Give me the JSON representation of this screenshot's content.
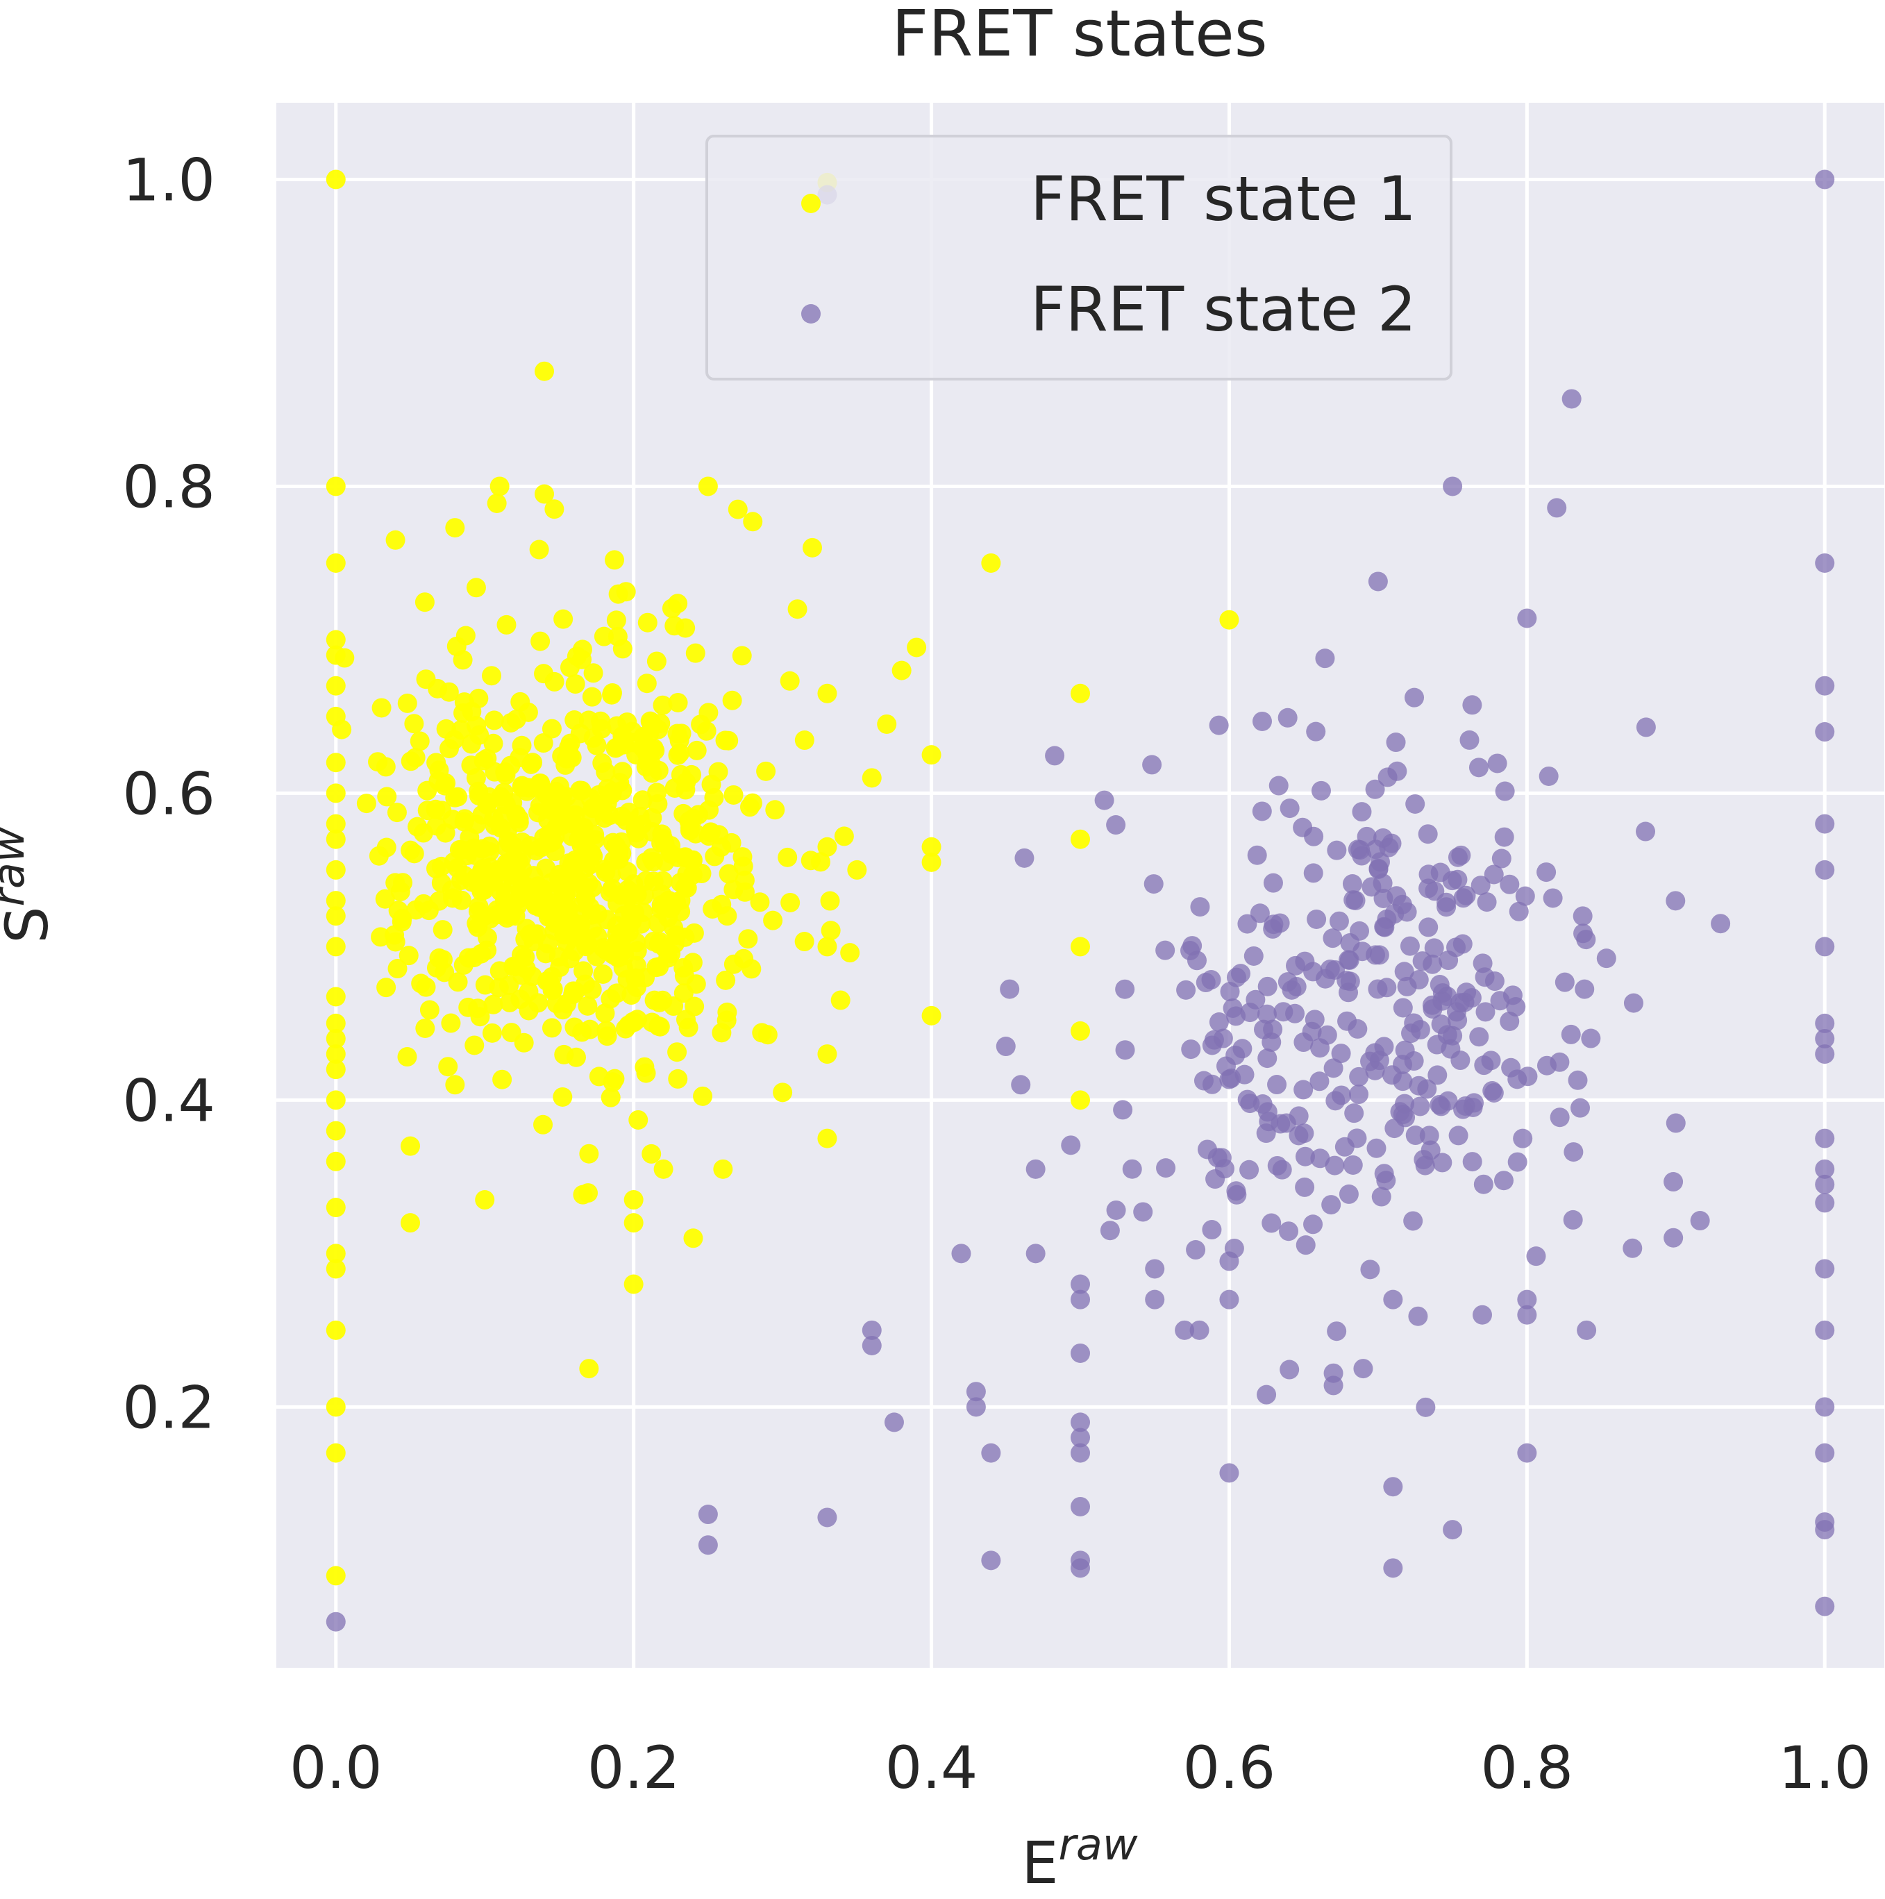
{
  "chart_data": {
    "type": "scatter",
    "title": "FRET states",
    "xlabel": {
      "base": "E",
      "sup": "raw"
    },
    "ylabel": {
      "base": "S",
      "sup": "raw"
    },
    "xlim": [
      -0.04,
      1.04
    ],
    "ylim": [
      0.03,
      1.05
    ],
    "xticks": [
      "0.0",
      "0.2",
      "0.4",
      "0.6",
      "0.8",
      "1.0"
    ],
    "yticks": [
      "0.2",
      "0.4",
      "0.6",
      "0.8",
      "1.0"
    ],
    "grid": true,
    "background_color": "#eaeaf2",
    "legend": {
      "placement": "top-center",
      "entries": [
        "FRET state 1",
        "FRET state 2"
      ]
    },
    "series": [
      {
        "name": "FRET state 1",
        "color": "#ffff00",
        "cluster_center": [
          0.16,
          0.56
        ],
        "points": [
          [
            0.0,
            1.0
          ],
          [
            0.0,
            0.8
          ],
          [
            0.0,
            0.75
          ],
          [
            0.0,
            0.7
          ],
          [
            0.0,
            0.69
          ],
          [
            0.0,
            0.67
          ],
          [
            0.0,
            0.65
          ],
          [
            0.0,
            0.62
          ],
          [
            0.0,
            0.6
          ],
          [
            0.0,
            0.58
          ],
          [
            0.0,
            0.57
          ],
          [
            0.0,
            0.55
          ],
          [
            0.0,
            0.53
          ],
          [
            0.0,
            0.52
          ],
          [
            0.0,
            0.5
          ],
          [
            0.0,
            0.45
          ],
          [
            0.0,
            0.44
          ],
          [
            0.0,
            0.43
          ],
          [
            0.0,
            0.42
          ],
          [
            0.0,
            0.4
          ],
          [
            0.0,
            0.38
          ],
          [
            0.0,
            0.36
          ],
          [
            0.0,
            0.33
          ],
          [
            0.0,
            0.3
          ],
          [
            0.0,
            0.29
          ],
          [
            0.0,
            0.25
          ],
          [
            0.0,
            0.2
          ],
          [
            0.0,
            0.17
          ],
          [
            0.0,
            0.09
          ],
          [
            0.14,
            0.875
          ],
          [
            0.11,
            0.8
          ],
          [
            0.14,
            0.795
          ],
          [
            0.25,
            0.8
          ],
          [
            0.27,
            0.785
          ],
          [
            0.28,
            0.777
          ],
          [
            0.32,
            0.76
          ],
          [
            0.44,
            0.75
          ],
          [
            0.04,
            0.765
          ],
          [
            0.08,
            0.773
          ],
          [
            0.33,
            0.998
          ],
          [
            0.05,
            0.32
          ],
          [
            0.1,
            0.335
          ],
          [
            0.2,
            0.335
          ],
          [
            0.2,
            0.32
          ],
          [
            0.24,
            0.31
          ],
          [
            0.2,
            0.28
          ],
          [
            0.17,
            0.225
          ],
          [
            0.6,
            0.713
          ],
          [
            0.5,
            0.665
          ],
          [
            0.4,
            0.625
          ],
          [
            0.4,
            0.565
          ],
          [
            0.4,
            0.555
          ],
          [
            0.4,
            0.455
          ],
          [
            0.5,
            0.57
          ],
          [
            0.5,
            0.5
          ],
          [
            0.5,
            0.445
          ],
          [
            0.5,
            0.4
          ],
          [
            0.33,
            0.375
          ],
          [
            0.33,
            0.43
          ],
          [
            0.3,
            0.405
          ],
          [
            0.26,
            0.355
          ],
          [
            0.22,
            0.355
          ],
          [
            0.17,
            0.365
          ],
          [
            0.08,
            0.41
          ],
          [
            0.05,
            0.37
          ],
          [
            0.35,
            0.55
          ],
          [
            0.36,
            0.61
          ],
          [
            0.37,
            0.645
          ],
          [
            0.38,
            0.68
          ],
          [
            0.39,
            0.695
          ],
          [
            0.33,
            0.5
          ],
          [
            0.33,
            0.565
          ],
          [
            0.31,
            0.72
          ],
          [
            0.33,
            0.665
          ]
        ],
        "random_cloud": {
          "count": 700,
          "center": [
            0.16,
            0.56
          ],
          "spread": [
            0.06,
            0.07
          ],
          "seed": 7
        }
      },
      {
        "name": "FRET state 2",
        "color": "#8172b3",
        "cluster_center": [
          0.68,
          0.46
        ],
        "points": [
          [
            0.0,
            0.06
          ],
          [
            0.33,
            0.99
          ],
          [
            1.0,
            1.0
          ],
          [
            1.0,
            0.75
          ],
          [
            1.0,
            0.67
          ],
          [
            1.0,
            0.64
          ],
          [
            1.0,
            0.58
          ],
          [
            1.0,
            0.55
          ],
          [
            1.0,
            0.5
          ],
          [
            1.0,
            0.45
          ],
          [
            1.0,
            0.44
          ],
          [
            1.0,
            0.43
          ],
          [
            1.0,
            0.375
          ],
          [
            1.0,
            0.355
          ],
          [
            1.0,
            0.345
          ],
          [
            1.0,
            0.333
          ],
          [
            1.0,
            0.29
          ],
          [
            1.0,
            0.25
          ],
          [
            1.0,
            0.2
          ],
          [
            1.0,
            0.17
          ],
          [
            1.0,
            0.125
          ],
          [
            1.0,
            0.12
          ],
          [
            1.0,
            0.07
          ],
          [
            0.83,
            0.857
          ],
          [
            0.75,
            0.8
          ],
          [
            0.82,
            0.786
          ],
          [
            0.7,
            0.738
          ],
          [
            0.8,
            0.714
          ],
          [
            0.88,
            0.643
          ],
          [
            0.93,
            0.515
          ],
          [
            0.9,
            0.385
          ],
          [
            0.25,
            0.13
          ],
          [
            0.25,
            0.11
          ],
          [
            0.33,
            0.128
          ],
          [
            0.36,
            0.25
          ],
          [
            0.36,
            0.24
          ],
          [
            0.375,
            0.19
          ],
          [
            0.42,
            0.3
          ],
          [
            0.43,
            0.21
          ],
          [
            0.43,
            0.2
          ],
          [
            0.44,
            0.17
          ],
          [
            0.44,
            0.1
          ],
          [
            0.5,
            0.28
          ],
          [
            0.5,
            0.27
          ],
          [
            0.5,
            0.235
          ],
          [
            0.5,
            0.19
          ],
          [
            0.5,
            0.18
          ],
          [
            0.5,
            0.17
          ],
          [
            0.5,
            0.135
          ],
          [
            0.5,
            0.1
          ],
          [
            0.5,
            0.095
          ],
          [
            0.6,
            0.157
          ],
          [
            0.625,
            0.208
          ],
          [
            0.67,
            0.222
          ],
          [
            0.67,
            0.214
          ],
          [
            0.69,
            0.225
          ],
          [
            0.71,
            0.148
          ],
          [
            0.71,
            0.095
          ],
          [
            0.75,
            0.12
          ],
          [
            0.8,
            0.17
          ],
          [
            0.84,
            0.25
          ],
          [
            0.8,
            0.27
          ],
          [
            0.8,
            0.26
          ],
          [
            0.77,
            0.26
          ],
          [
            0.71,
            0.27
          ],
          [
            0.6,
            0.295
          ],
          [
            0.6,
            0.27
          ],
          [
            0.57,
            0.25
          ],
          [
            0.58,
            0.25
          ],
          [
            0.55,
            0.27
          ],
          [
            0.55,
            0.29
          ],
          [
            0.47,
            0.3
          ],
          [
            0.47,
            0.355
          ],
          [
            0.52,
            0.315
          ],
          [
            0.46,
            0.41
          ],
          [
            0.45,
            0.435
          ]
        ],
        "random_cloud": {
          "count": 330,
          "center": [
            0.68,
            0.46
          ],
          "spread": [
            0.085,
            0.085
          ],
          "seed": 13
        }
      }
    ]
  }
}
